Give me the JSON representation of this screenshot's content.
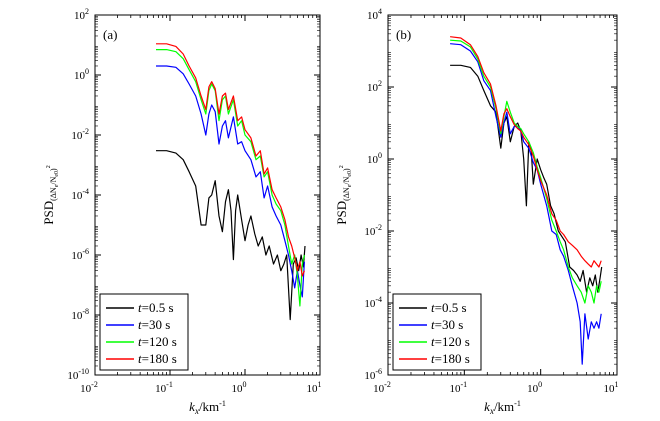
{
  "chart_data": [
    {
      "type": "line",
      "panel_label": "(a)",
      "xscale": "log",
      "yscale": "log",
      "xlim": [
        0.01,
        10
      ],
      "ylim": [
        1e-10,
        100
      ],
      "xtick_values": [
        0.01,
        0.1,
        1,
        10
      ],
      "xtick_base": [
        "10",
        "10",
        "10",
        "10"
      ],
      "xtick_exp": [
        "-2",
        "-1",
        "0",
        "1"
      ],
      "ytick_values": [
        1e-10,
        1e-08,
        1e-06,
        0.0001,
        0.01,
        1,
        100
      ],
      "ytick_base": [
        "10",
        "10",
        "10",
        "10",
        "10",
        "10",
        "10"
      ],
      "ytick_exp": [
        "-10",
        "-8",
        "-6",
        "-4",
        "-2",
        "0",
        "2"
      ],
      "xlabel_main": "k",
      "xlabel_sub": "x",
      "xlabel_unit": "/km",
      "xlabel_unit_exp": "-1",
      "ylabel_main": "PSD",
      "ylabel_sub": "(ΔN",
      "ylabel_sub2": "e",
      "ylabel_sub3": "/N",
      "ylabel_sub4": "e0",
      "ylabel_sub5": ")",
      "ylabel_sup": "2",
      "legend_position": "bottom-left",
      "series": [
        {
          "name_italic": "t",
          "name_rest": "=0.5 s",
          "color": "#000000",
          "x": [
            0.065,
            0.09,
            0.12,
            0.15,
            0.18,
            0.22,
            0.26,
            0.3,
            0.33,
            0.36,
            0.4,
            0.45,
            0.5,
            0.55,
            0.6,
            0.65,
            0.7,
            0.75,
            0.8,
            0.9,
            1.0,
            1.1,
            1.2,
            1.35,
            1.5,
            1.7,
            1.9,
            2.1,
            2.4,
            2.7,
            3.0,
            3.3,
            3.6,
            4.0,
            4.4,
            4.8,
            5.2,
            5.6,
            6.0,
            6.3
          ],
          "y": [
            0.003,
            0.003,
            0.0025,
            0.0015,
            0.0006,
            0.0002,
            1e-05,
            1e-05,
            8e-05,
            0.0001,
            0.0003,
            2e-05,
            6e-06,
            6e-05,
            0.00015,
            3e-05,
            7e-07,
            3e-05,
            0.0001,
            1.5e-05,
            3e-06,
            1e-05,
            2e-05,
            5e-06,
            2e-06,
            4e-06,
            1e-06,
            2e-06,
            5e-07,
            1e-06,
            3e-07,
            5e-07,
            1e-06,
            7e-09,
            5e-07,
            8e-07,
            3e-07,
            1e-06,
            4e-07,
            2e-06
          ]
        },
        {
          "name_italic": "t",
          "name_rest": "=30 s",
          "color": "#0000ff",
          "x": [
            0.065,
            0.09,
            0.12,
            0.15,
            0.18,
            0.22,
            0.26,
            0.3,
            0.33,
            0.36,
            0.4,
            0.45,
            0.5,
            0.55,
            0.6,
            0.7,
            0.8,
            0.9,
            1.0,
            1.2,
            1.4,
            1.6,
            1.8,
            2.0,
            2.3,
            2.6,
            3.0,
            3.4,
            3.8,
            4.2,
            4.6,
            5.0,
            5.4,
            5.8,
            6.2
          ],
          "y": [
            2,
            2,
            1.8,
            1.1,
            0.5,
            0.2,
            0.05,
            0.01,
            0.05,
            0.1,
            0.06,
            0.005,
            0.02,
            0.03,
            0.008,
            0.04,
            0.005,
            0.006,
            0.003,
            0.0015,
            0.0004,
            0.0006,
            8e-05,
            0.0002,
            4e-05,
            2e-05,
            1e-05,
            3e-06,
            1e-06,
            3e-07,
            8e-08,
            3e-07,
            1e-07,
            4e-08,
            6e-07
          ]
        },
        {
          "name_italic": "t",
          "name_rest": "=120 s",
          "color": "#00ff00",
          "x": [
            0.065,
            0.09,
            0.12,
            0.15,
            0.18,
            0.22,
            0.26,
            0.3,
            0.33,
            0.36,
            0.4,
            0.45,
            0.5,
            0.55,
            0.6,
            0.7,
            0.8,
            0.9,
            1.0,
            1.2,
            1.4,
            1.6,
            1.8,
            2.0,
            2.3,
            2.6,
            3.0,
            3.4,
            3.8,
            4.2,
            4.6,
            5.0,
            5.4,
            5.8,
            6.2
          ],
          "y": [
            7,
            7,
            6,
            3.5,
            1.5,
            0.6,
            0.15,
            0.05,
            0.3,
            0.5,
            0.3,
            0.03,
            0.15,
            0.2,
            0.05,
            0.15,
            0.02,
            0.03,
            0.01,
            0.006,
            0.0015,
            0.002,
            0.0004,
            0.0006,
            0.0001,
            5e-05,
            3e-05,
            1e-05,
            2e-06,
            5e-07,
            1e-06,
            2e-07,
            2e-08,
            5e-07,
            1e-06
          ]
        },
        {
          "name_italic": "t",
          "name_rest": "=180 s",
          "color": "#ff0000",
          "x": [
            0.065,
            0.09,
            0.12,
            0.15,
            0.18,
            0.22,
            0.26,
            0.3,
            0.33,
            0.36,
            0.4,
            0.45,
            0.5,
            0.55,
            0.6,
            0.7,
            0.8,
            0.9,
            1.0,
            1.2,
            1.4,
            1.6,
            1.8,
            2.0,
            2.3,
            2.6,
            3.0,
            3.4,
            3.8,
            4.2,
            4.6,
            5.0,
            5.4,
            5.8,
            6.2
          ],
          "y": [
            11,
            11,
            9,
            5,
            2,
            0.8,
            0.2,
            0.07,
            0.4,
            0.6,
            0.35,
            0.05,
            0.2,
            0.25,
            0.07,
            0.2,
            0.03,
            0.04,
            0.015,
            0.008,
            0.002,
            0.003,
            0.0005,
            0.0008,
            0.00015,
            8e-05,
            4e-05,
            1.5e-05,
            4e-06,
            2e-06,
            8e-07,
            3e-07,
            6e-07,
            2e-07,
            3e-07
          ]
        }
      ]
    },
    {
      "type": "line",
      "panel_label": "(b)",
      "xscale": "log",
      "yscale": "log",
      "xlim": [
        0.01,
        10
      ],
      "ylim": [
        1e-06,
        10000
      ],
      "xtick_values": [
        0.01,
        0.1,
        1,
        10
      ],
      "xtick_base": [
        "10",
        "10",
        "10",
        "10"
      ],
      "xtick_exp": [
        "-2",
        "-1",
        "0",
        "1"
      ],
      "ytick_values": [
        1e-06,
        0.0001,
        0.01,
        1,
        100,
        10000
      ],
      "ytick_base": [
        "10",
        "10",
        "10",
        "10",
        "10",
        "10"
      ],
      "ytick_exp": [
        "-6",
        "-4",
        "-2",
        "0",
        "2",
        "4"
      ],
      "xlabel_main": "k",
      "xlabel_sub": "x",
      "xlabel_unit": "/km",
      "xlabel_unit_exp": "-1",
      "ylabel_main": "PSD",
      "ylabel_sub": "(ΔN",
      "ylabel_sub2": "e",
      "ylabel_sub3": "/N",
      "ylabel_sub4": "e0",
      "ylabel_sub5": ")",
      "ylabel_sup": "2",
      "legend_position": "bottom-left",
      "series": [
        {
          "name_italic": "t",
          "name_rest": "=0.5 s",
          "color": "#000000",
          "x": [
            0.065,
            0.09,
            0.12,
            0.15,
            0.18,
            0.22,
            0.26,
            0.3,
            0.33,
            0.36,
            0.4,
            0.45,
            0.5,
            0.55,
            0.6,
            0.65,
            0.7,
            0.75,
            0.8,
            0.9,
            1.0,
            1.1,
            1.2,
            1.35,
            1.5,
            1.7,
            1.9,
            2.1,
            2.4,
            2.7,
            3.0,
            3.3,
            3.6,
            4.0,
            4.4,
            4.8,
            5.2,
            5.6,
            6.0,
            6.3
          ],
          "y": [
            400,
            400,
            350,
            200,
            80,
            30,
            20,
            2,
            10,
            15,
            3,
            8,
            10,
            6,
            1,
            0.05,
            3,
            2,
            0.2,
            1,
            0.5,
            0.3,
            0.2,
            0.05,
            0.03,
            0.01,
            0.007,
            0.005,
            0.001,
            0.0008,
            0.0006,
            0.0004,
            0.0008,
            0.0002,
            0.0005,
            0.0003,
            0.0006,
            0.0002,
            0.0005,
            0.001
          ]
        },
        {
          "name_italic": "t",
          "name_rest": "=30 s",
          "color": "#0000ff",
          "x": [
            0.065,
            0.09,
            0.12,
            0.15,
            0.18,
            0.22,
            0.26,
            0.3,
            0.33,
            0.36,
            0.4,
            0.45,
            0.5,
            0.55,
            0.6,
            0.7,
            0.8,
            0.9,
            1.0,
            1.2,
            1.4,
            1.6,
            1.8,
            2.0,
            2.3,
            2.6,
            3.0,
            3.3,
            3.5,
            3.8,
            4.2,
            4.6,
            5.0,
            5.4,
            5.8,
            6.2
          ],
          "y": [
            1600,
            1500,
            1000,
            500,
            150,
            80,
            15,
            4,
            10,
            20,
            5,
            8,
            8,
            6,
            3,
            2,
            0.8,
            0.5,
            0.2,
            0.05,
            0.01,
            0.008,
            0.003,
            0.002,
            0.0008,
            0.0003,
            0.0001,
            3e-05,
            2e-06,
            5e-05,
            1e-05,
            3e-05,
            2e-05,
            3e-05,
            2e-05,
            5e-05
          ]
        },
        {
          "name_italic": "t",
          "name_rest": "=120 s",
          "color": "#00ff00",
          "x": [
            0.065,
            0.09,
            0.12,
            0.15,
            0.18,
            0.22,
            0.26,
            0.3,
            0.33,
            0.36,
            0.4,
            0.45,
            0.5,
            0.55,
            0.6,
            0.7,
            0.8,
            0.9,
            1.0,
            1.2,
            1.4,
            1.6,
            1.8,
            2.0,
            2.3,
            2.6,
            3.0,
            3.4,
            3.8,
            4.2,
            4.6,
            5.0,
            5.4,
            5.8,
            6.2
          ],
          "y": [
            2000,
            1900,
            1300,
            600,
            200,
            100,
            25,
            5,
            15,
            40,
            20,
            10,
            8,
            7,
            5,
            3,
            1.5,
            0.6,
            0.3,
            0.08,
            0.02,
            0.01,
            0.005,
            0.003,
            0.001,
            0.0005,
            0.0003,
            0.0002,
            0.0001,
            0.0003,
            0.0002,
            0.0001,
            0.0003,
            0.0002,
            0.0004
          ]
        },
        {
          "name_italic": "t",
          "name_rest": "=180 s",
          "color": "#ff0000",
          "x": [
            0.065,
            0.09,
            0.12,
            0.15,
            0.18,
            0.22,
            0.26,
            0.3,
            0.33,
            0.36,
            0.4,
            0.45,
            0.5,
            0.55,
            0.6,
            0.7,
            0.8,
            0.9,
            1.0,
            1.2,
            1.4,
            1.6,
            1.8,
            2.0,
            2.3,
            2.6,
            3.0,
            3.4,
            3.8,
            4.2,
            4.6,
            5.0,
            5.4,
            5.8,
            6.2
          ],
          "y": [
            2500,
            2300,
            1500,
            700,
            250,
            120,
            30,
            6,
            18,
            25,
            15,
            9,
            7,
            6,
            4,
            2.5,
            1.2,
            0.5,
            0.25,
            0.1,
            0.03,
            0.02,
            0.01,
            0.008,
            0.005,
            0.004,
            0.003,
            0.002,
            0.0015,
            0.0012,
            0.001,
            0.0015,
            0.0012,
            0.001,
            0.0015
          ]
        }
      ]
    }
  ]
}
